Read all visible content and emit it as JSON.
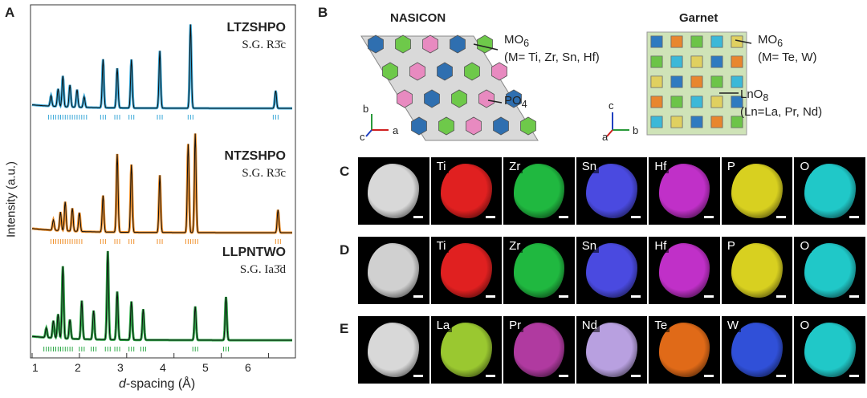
{
  "panels": {
    "a": "A",
    "b": "B",
    "c": "C",
    "d": "D",
    "e": "E"
  },
  "xrd": {
    "ylabel": "Intensity (a.u.)",
    "xlabel_italic": "d",
    "xlabel_rest": "-spacing (Å)",
    "xticks": [
      "1",
      "2",
      "3",
      "4",
      "5",
      "6"
    ],
    "patterns": [
      {
        "name": "LTZSHPO",
        "sg": "S.G. R3̄c",
        "color": "#3aa8d8",
        "peaks": [
          [
            1.4,
            0.12
          ],
          [
            1.55,
            0.2
          ],
          [
            1.65,
            0.35
          ],
          [
            1.8,
            0.25
          ],
          [
            1.95,
            0.2
          ],
          [
            2.1,
            0.12
          ],
          [
            2.5,
            0.55
          ],
          [
            2.8,
            0.45
          ],
          [
            3.1,
            0.55
          ],
          [
            3.7,
            0.65
          ],
          [
            4.35,
            0.95
          ],
          [
            6.15,
            0.2
          ]
        ]
      },
      {
        "name": "NTZSHPO",
        "sg": "S.G. R3̄c",
        "color": "#f0922e",
        "peaks": [
          [
            1.45,
            0.1
          ],
          [
            1.6,
            0.18
          ],
          [
            1.7,
            0.28
          ],
          [
            1.85,
            0.22
          ],
          [
            2.0,
            0.18
          ],
          [
            2.5,
            0.35
          ],
          [
            2.8,
            0.75
          ],
          [
            3.1,
            0.65
          ],
          [
            3.7,
            0.55
          ],
          [
            4.3,
            0.85
          ],
          [
            4.45,
            0.95
          ],
          [
            6.2,
            0.22
          ]
        ]
      },
      {
        "name": "LLPNTWO",
        "sg": "S.G. Ia3̄d",
        "color": "#2eaa48",
        "peaks": [
          [
            1.3,
            0.1
          ],
          [
            1.45,
            0.18
          ],
          [
            1.55,
            0.25
          ],
          [
            1.65,
            0.75
          ],
          [
            1.8,
            0.2
          ],
          [
            2.05,
            0.4
          ],
          [
            2.3,
            0.3
          ],
          [
            2.6,
            0.92
          ],
          [
            2.8,
            0.5
          ],
          [
            3.1,
            0.4
          ],
          [
            3.35,
            0.32
          ],
          [
            4.45,
            0.35
          ],
          [
            5.1,
            0.45
          ]
        ]
      }
    ]
  },
  "structures": {
    "nasicon": {
      "title": "NASICON",
      "mo6_base": "MO",
      "mo6_sub": "6",
      "mo6_detail": "(M= Ti, Zr, Sn, Hf)",
      "po4_base": "PO",
      "po4_sub": "4",
      "axes": {
        "up": "b",
        "right": "a",
        "out": "c"
      }
    },
    "garnet": {
      "title": "Garnet",
      "mo6_base": "MO",
      "mo6_sub": "6",
      "mo6_detail": "(M= Te, W)",
      "lno8_base": "LnO",
      "lno8_sub": "8",
      "lno8_detail": "(Ln=La, Pr, Nd)",
      "axes": {
        "up": "c",
        "right": "b",
        "out": "a"
      }
    }
  },
  "maps": {
    "c": [
      {
        "label": "",
        "color": "#d8d8d8"
      },
      {
        "label": "Ti",
        "color": "#e02020"
      },
      {
        "label": "Zr",
        "color": "#20b840"
      },
      {
        "label": "Sn",
        "color": "#4a4ae0"
      },
      {
        "label": "Hf",
        "color": "#c030c8"
      },
      {
        "label": "P",
        "color": "#d8d020"
      },
      {
        "label": "O",
        "color": "#20c8c8"
      }
    ],
    "d": [
      {
        "label": "",
        "color": "#d0d0d0"
      },
      {
        "label": "Ti",
        "color": "#e02020"
      },
      {
        "label": "Zr",
        "color": "#20b840"
      },
      {
        "label": "Sn",
        "color": "#4a4ae0"
      },
      {
        "label": "Hf",
        "color": "#c030c8"
      },
      {
        "label": "P",
        "color": "#d8d020"
      },
      {
        "label": "O",
        "color": "#20c8c8"
      }
    ],
    "e": [
      {
        "label": "",
        "color": "#d8d8d8"
      },
      {
        "label": "La",
        "color": "#9ac830"
      },
      {
        "label": "Pr",
        "color": "#b03aa0"
      },
      {
        "label": "Nd",
        "color": "#b8a0e0"
      },
      {
        "label": "Te",
        "color": "#e06a18"
      },
      {
        "label": "W",
        "color": "#3050d8"
      },
      {
        "label": "O",
        "color": "#20c8c8"
      }
    ]
  }
}
